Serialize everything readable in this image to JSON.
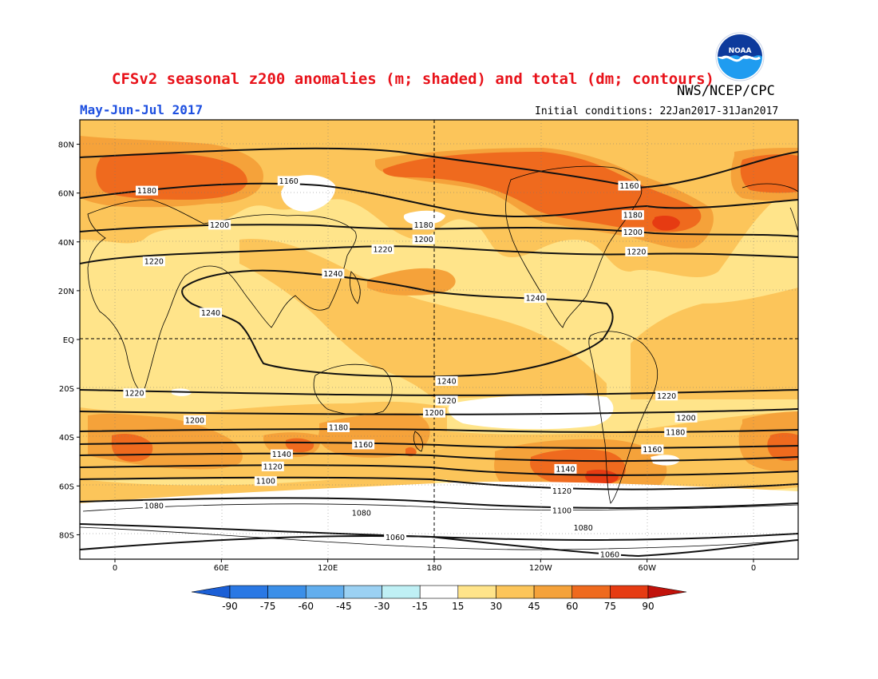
{
  "header": {
    "title": "CFSv2 seasonal z200 anomalies (m; shaded) and total (dm; contours)",
    "agency": "NWS/NCEP/CPC",
    "period": "May-Jun-Jul 2017",
    "initial_conditions": "Initial conditions: 22Jan2017-31Jan2017",
    "logo_text": "NOAA"
  },
  "map": {
    "projection": "cylindrical equidistant",
    "lon_range": [
      -20,
      250
    ],
    "lat_range": [
      -90,
      90
    ],
    "background_anomaly_class": "15 to 30",
    "lat_ticks": [
      {
        "lat": 80,
        "label": "80N"
      },
      {
        "lat": 60,
        "label": "60N"
      },
      {
        "lat": 40,
        "label": "40N"
      },
      {
        "lat": 20,
        "label": "20N"
      },
      {
        "lat": 0,
        "label": "EQ"
      },
      {
        "lat": -20,
        "label": "20S"
      },
      {
        "lat": -40,
        "label": "40S"
      },
      {
        "lat": -60,
        "label": "60S"
      },
      {
        "lat": -80,
        "label": "80S"
      }
    ],
    "lon_ticks": [
      {
        "lon": 0,
        "label": "0"
      },
      {
        "lon": 60,
        "label": "60E"
      },
      {
        "lon": 120,
        "label": "120E"
      },
      {
        "lon": 180,
        "label": "180"
      },
      {
        "lon": 240,
        "label": "120W"
      },
      {
        "lon": 300,
        "label": "60W"
      },
      {
        "lon": 360,
        "label": "0"
      }
    ],
    "dashed_lines": [
      "Equator",
      "180"
    ],
    "contour_labels": [
      {
        "value": "1180",
        "lon": 18,
        "lat": 61
      },
      {
        "value": "1160",
        "lon": 98,
        "lat": 65
      },
      {
        "value": "1160",
        "lon": 290,
        "lat": 63
      },
      {
        "value": "1180",
        "lon": 174,
        "lat": 47
      },
      {
        "value": "1180",
        "lon": 292,
        "lat": 51
      },
      {
        "value": "1200",
        "lon": 59,
        "lat": 47
      },
      {
        "value": "1200",
        "lon": 174,
        "lat": 41
      },
      {
        "value": "1200",
        "lon": 292,
        "lat": 44
      },
      {
        "value": "1220",
        "lon": 22,
        "lat": 32
      },
      {
        "value": "1220",
        "lon": 151,
        "lat": 37
      },
      {
        "value": "1220",
        "lon": 294,
        "lat": 36
      },
      {
        "value": "1240",
        "lon": 123,
        "lat": 27
      },
      {
        "value": "1240",
        "lon": 54,
        "lat": 11
      },
      {
        "value": "1240",
        "lon": 237,
        "lat": 17
      },
      {
        "value": "1240",
        "lon": 187,
        "lat": -17
      },
      {
        "value": "1220",
        "lon": 11,
        "lat": -22
      },
      {
        "value": "1220",
        "lon": 187,
        "lat": -25
      },
      {
        "value": "1220",
        "lon": 311,
        "lat": -23
      },
      {
        "value": "1200",
        "lon": 45,
        "lat": -33
      },
      {
        "value": "1200",
        "lon": 180,
        "lat": -30
      },
      {
        "value": "1200",
        "lon": 322,
        "lat": -32
      },
      {
        "value": "1180",
        "lon": 126,
        "lat": -36
      },
      {
        "value": "1180",
        "lon": 316,
        "lat": -38
      },
      {
        "value": "1160",
        "lon": 140,
        "lat": -43
      },
      {
        "value": "1160",
        "lon": 303,
        "lat": -45
      },
      {
        "value": "1140",
        "lon": 94,
        "lat": -47
      },
      {
        "value": "1140",
        "lon": 254,
        "lat": -53
      },
      {
        "value": "1120",
        "lon": 89,
        "lat": -52
      },
      {
        "value": "1120",
        "lon": 252,
        "lat": -62
      },
      {
        "value": "1100",
        "lon": 85,
        "lat": -58
      },
      {
        "value": "1100",
        "lon": 252,
        "lat": -70
      },
      {
        "value": "1080",
        "lon": 22,
        "lat": -68
      },
      {
        "value": "1080",
        "lon": 139,
        "lat": -71
      },
      {
        "value": "1080",
        "lon": 264,
        "lat": -77
      },
      {
        "value": "1060",
        "lon": 158,
        "lat": -81
      },
      {
        "value": "1060",
        "lon": 279,
        "lat": -88
      }
    ]
  },
  "colorbar": {
    "levels": [
      "-90",
      "-75",
      "-60",
      "-45",
      "-30",
      "-15",
      "15",
      "30",
      "45",
      "60",
      "75",
      "90"
    ],
    "colors": [
      "#1b5fd6",
      "#2a78e4",
      "#3b8fe8",
      "#62aeee",
      "#9bd1f3",
      "#bff0f5",
      "#ffffff",
      "#ffe48a",
      "#fcc55a",
      "#f5a23a",
      "#ef6a1e",
      "#e63b12",
      "#c1120b"
    ]
  },
  "colors": {
    "title": "#e8121a",
    "period": "#1d4fe0",
    "anomaly_15_30": "#ffe48a",
    "anomaly_30_45": "#fcc55a",
    "anomaly_45_60": "#f5a23a",
    "anomaly_60_75": "#ef6a1e",
    "anomaly_75_90": "#e63b12",
    "anomaly_lt_15": "#ffffff"
  }
}
